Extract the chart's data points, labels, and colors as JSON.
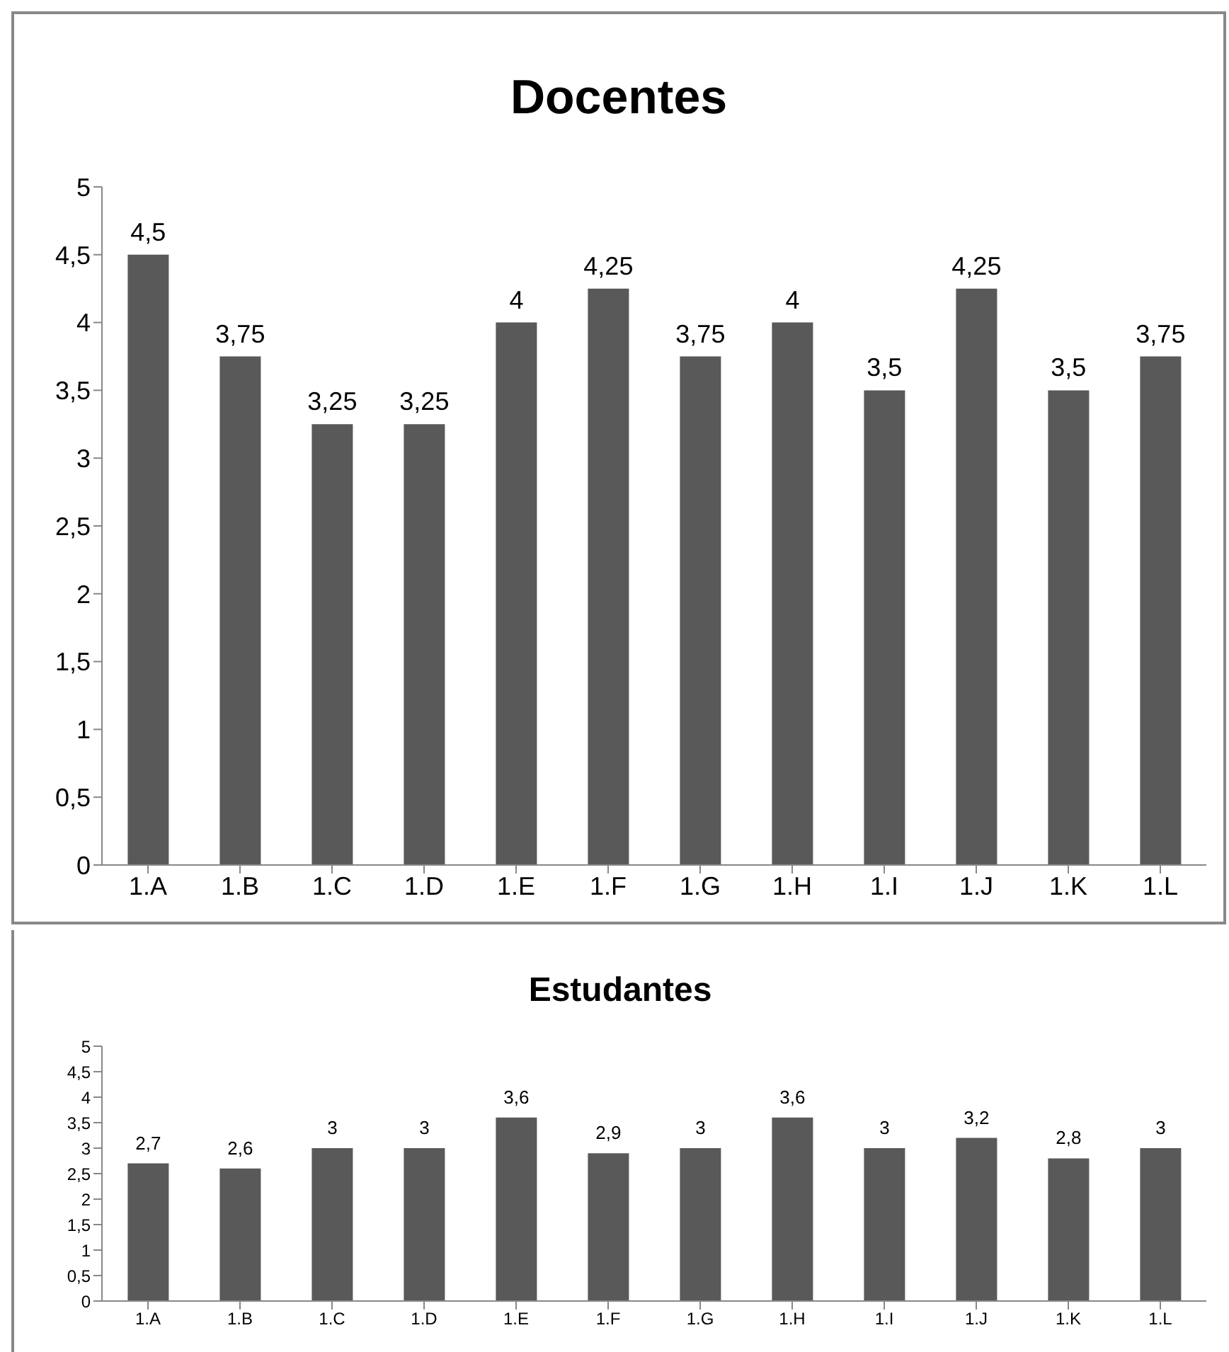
{
  "chart_data": [
    {
      "type": "bar",
      "title": "Docentes",
      "categories": [
        "1.A",
        "1.B",
        "1.C",
        "1.D",
        "1.E",
        "1.F",
        "1.G",
        "1.H",
        "1.I",
        "1.J",
        "1.K",
        "1.L"
      ],
      "values": [
        4.5,
        3.75,
        3.25,
        3.25,
        4,
        4.25,
        3.75,
        4,
        3.5,
        4.25,
        3.5,
        3.75
      ],
      "value_labels": [
        "4,5",
        "3,75",
        "3,25",
        "3,25",
        "4",
        "4,25",
        "3,75",
        "4",
        "3,5",
        "4,25",
        "3,5",
        "3,75"
      ],
      "color": "#595959",
      "ylim": [
        0,
        5
      ],
      "yticks": [
        0,
        {
          "value": 0.5,
          "label": "0,5"
        },
        1,
        {
          "value": 1.5,
          "label": "1,5"
        },
        2,
        {
          "value": 2.5,
          "label": "2,5"
        },
        3,
        {
          "value": 3.5,
          "label": "3,5"
        },
        4,
        {
          "value": 4.5,
          "label": "4,5"
        },
        5
      ],
      "grid": false
    },
    {
      "type": "bar",
      "title": "Estudantes",
      "categories": [
        "1.A",
        "1.B",
        "1.C",
        "1.D",
        "1.E",
        "1.F",
        "1.G",
        "1.H",
        "1.I",
        "1.J",
        "1.K",
        "1.L"
      ],
      "values": [
        2.7,
        2.6,
        3,
        3,
        3.6,
        2.9,
        3,
        3.6,
        3,
        3.2,
        2.8,
        3
      ],
      "value_labels": [
        "2,7",
        "2,6",
        "3",
        "3",
        "3,6",
        "2,9",
        "3",
        "3,6",
        "3",
        "3,2",
        "2,8",
        "3"
      ],
      "color": "#595959",
      "ylim": [
        0,
        5
      ],
      "yticks": [
        0,
        {
          "value": 0.5,
          "label": "0,5"
        },
        1,
        {
          "value": 1.5,
          "label": "1,5"
        },
        2,
        {
          "value": 2.5,
          "label": "2,5"
        },
        3,
        {
          "value": 3.5,
          "label": "3,5"
        },
        4,
        {
          "value": 4.5,
          "label": "4,5"
        },
        5
      ],
      "grid": false
    }
  ]
}
